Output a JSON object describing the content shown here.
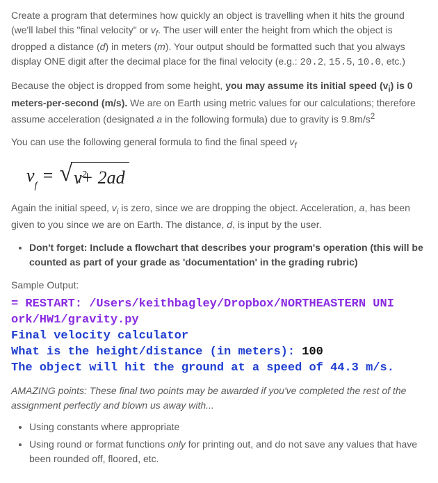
{
  "p1": {
    "a": "Create a program that determines how quickly an object is travelling when it hits the ground (we'll label this \"final velocity\" or ",
    "vf": "v",
    "vfsub": "f",
    "b": ". The user will enter the height from which the object is dropped a distance (",
    "d": "d",
    "b2": ") in meters (",
    "m": "m",
    "c": "). Your output should be formatted such that you always display ONE digit after the decimal place for the final velocity (e.g.: ",
    "ex1": "20.2",
    "sep1": ", ",
    "ex2": "15.5",
    "sep2": ", ",
    "ex3": "10.0",
    "d_end": ", etc.)"
  },
  "p2": {
    "a": "Because the object is dropped from some height, ",
    "bold": "you may assume its initial speed (v",
    "bold_sub": "i",
    "bold2": ") is 0 meters-per-second (m/s).",
    "b": " We are on Earth using metric values for our calculations; therefore assume acceleration (designated ",
    "avar": "a",
    "c": " in the following formula) due to gravity is 9.8m/s",
    "sup": "2"
  },
  "p3": {
    "a": "You can use the following general formula to find the final speed ",
    "vf": "v",
    "vfsub": "f"
  },
  "formula": {
    "v": "v",
    "f": "f",
    "eq": " = ",
    "vi_v": "v",
    "vi_i": "i",
    "vi_sq": "2",
    "plus": " + 2",
    "a": "a",
    "d": "d"
  },
  "p4": {
    "a": "Again the initial speed, ",
    "vi": "v",
    "vi_sub": "i",
    "b": " is zero, since we are dropping the object. Acceleration, ",
    "avar": "a",
    "c": ", has been given to you since we are on Earth. The distance, ",
    "dvar": "d",
    "d": ", is input by the user."
  },
  "bullet1": {
    "bold": "Don't forget: Include a flowchart that describes your program's operation (this will be counted as part of your grade as 'documentation' in the grading rubric)"
  },
  "sample_label": "Sample Output:",
  "output": {
    "l1a": "= RESTART: /Users/keithbagley/Dropbox/NORTHEASTERN UNI",
    "l2a": "ork/HW1/gravity.py",
    "l3a": "Final velocity calculator",
    "l4a": "What is the height/distance (in meters): ",
    "l4b": "100",
    "l5a": "The object will hit the ground at a speed of 44.3 m/s."
  },
  "amazing": "AMAZING points: These final two points may be awarded if you've completed the rest of the assignment perfectly and blown us away with...",
  "bullets2": {
    "a": "Using constants where appropriate",
    "b_pre": "Using round or format functions ",
    "b_em": "only",
    "b_post": " for printing out, and do not save any values that have been rounded off, floored, etc."
  }
}
